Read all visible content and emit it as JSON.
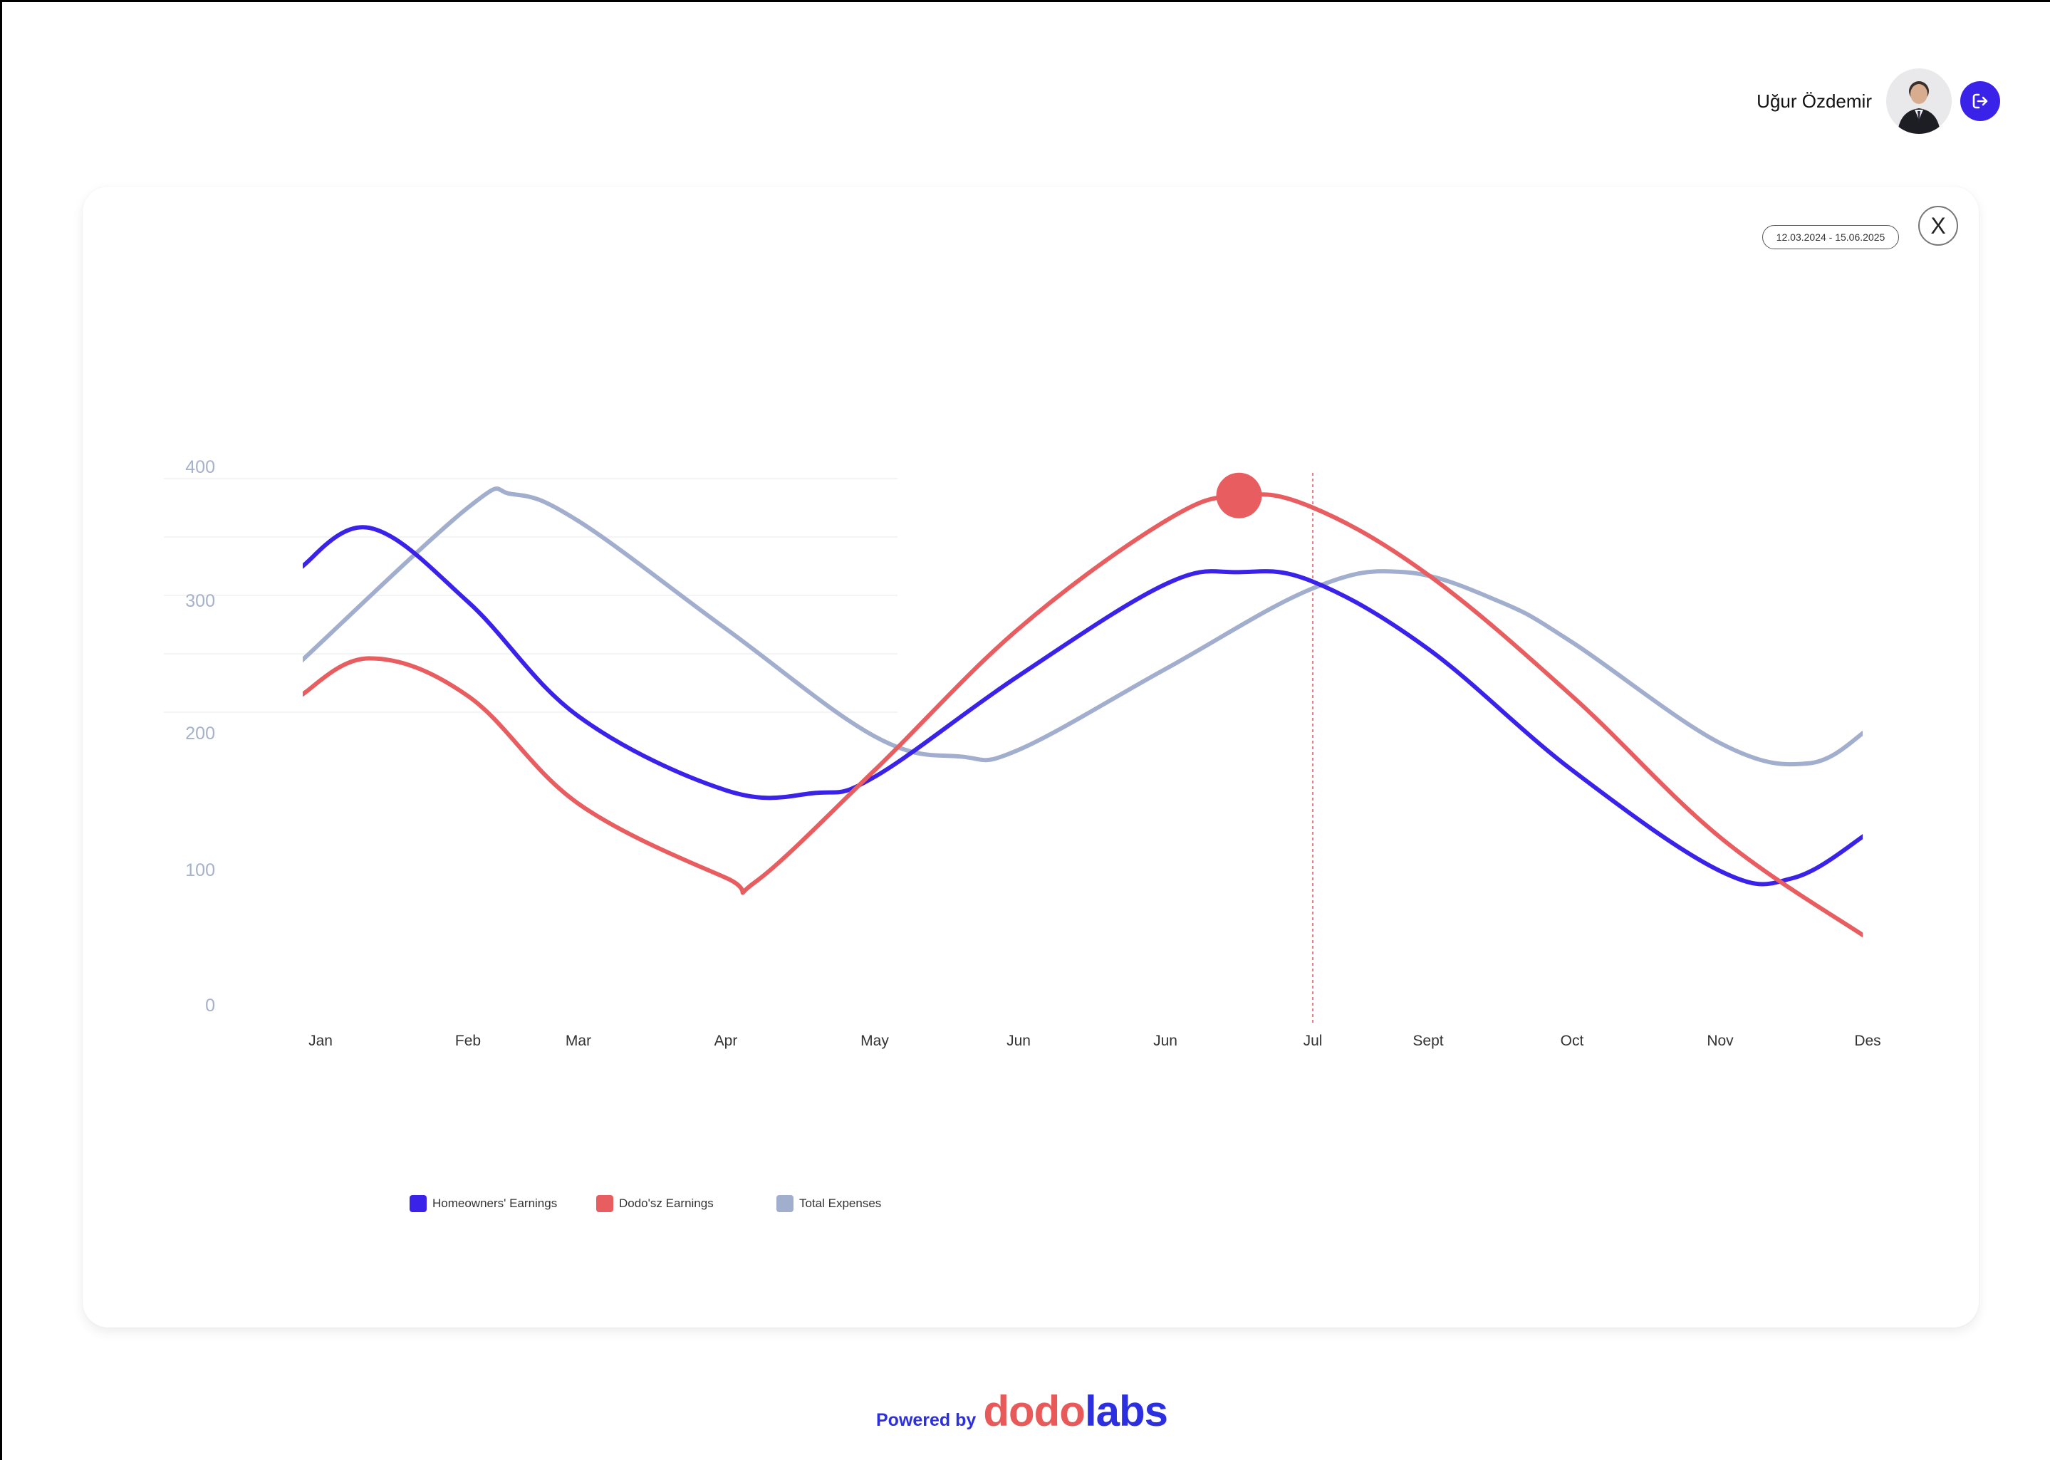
{
  "header": {
    "user_name": "Uğur Özdemir",
    "avatar_icon": "user-avatar-icon",
    "logout_icon": "logout-icon"
  },
  "card": {
    "date_range": "12.03.2024 - 15.06.2025",
    "close_label": "X"
  },
  "footer": {
    "powered_by": "Powered by",
    "brand_part1": "dodo",
    "brand_part2": "labs"
  },
  "colors": {
    "homeowners": "#3a22e8",
    "dodosz": "#e85d60",
    "expenses": "#a2aecd",
    "axis_text": "#a6b1cc"
  },
  "chart_data": {
    "type": "line",
    "categories": [
      "Jan",
      "Feb",
      "Mar",
      "Apr",
      "May",
      "Jun",
      "Jun",
      "Jul",
      "Sept",
      "Oct",
      "Nov",
      "Des"
    ],
    "y_ticks": [
      0,
      100,
      200,
      300,
      400
    ],
    "ylim": [
      0,
      400
    ],
    "grid": true,
    "legend_position": "bottom-left",
    "series": [
      {
        "name": "Homeowners' Earnings",
        "color": "#3a22e8",
        "points": [
          [
            0,
            325
          ],
          [
            0.33,
            355
          ],
          [
            1,
            300
          ],
          [
            2,
            215
          ],
          [
            3,
            160
          ],
          [
            3.6,
            158
          ],
          [
            4,
            170
          ],
          [
            5,
            245
          ],
          [
            6,
            313
          ],
          [
            6.5,
            322
          ],
          [
            7,
            315
          ],
          [
            8,
            265
          ],
          [
            9,
            175
          ],
          [
            10,
            100
          ],
          [
            10.5,
            95
          ],
          [
            11,
            128
          ]
        ]
      },
      {
        "name": "Dodo'sz Earnings",
        "color": "#e85d60",
        "points": [
          [
            0,
            230
          ],
          [
            0.33,
            258
          ],
          [
            1,
            230
          ],
          [
            2,
            150
          ],
          [
            3,
            95
          ],
          [
            3.2,
            92
          ],
          [
            4,
            175
          ],
          [
            5,
            280
          ],
          [
            6,
            360
          ],
          [
            6.5,
            379
          ],
          [
            7,
            370
          ],
          [
            8,
            320
          ],
          [
            9,
            230
          ],
          [
            10,
            125
          ],
          [
            11,
            50
          ]
        ]
      },
      {
        "name": "Total Expenses",
        "color": "#a2aecd",
        "points": [
          [
            0,
            255
          ],
          [
            1,
            370
          ],
          [
            1.4,
            380
          ],
          [
            2,
            360
          ],
          [
            3,
            280
          ],
          [
            4,
            200
          ],
          [
            4.6,
            185
          ],
          [
            5,
            190
          ],
          [
            6,
            250
          ],
          [
            7,
            310
          ],
          [
            7.8,
            322
          ],
          [
            8.5,
            300
          ],
          [
            9,
            270
          ],
          [
            10,
            195
          ],
          [
            10.6,
            180
          ],
          [
            11,
            205
          ]
        ]
      }
    ],
    "highlight": {
      "series": "Dodo'sz Earnings",
      "x": 6.5,
      "y": 379
    },
    "reference_line": {
      "x": 7,
      "label": "Jul"
    }
  }
}
